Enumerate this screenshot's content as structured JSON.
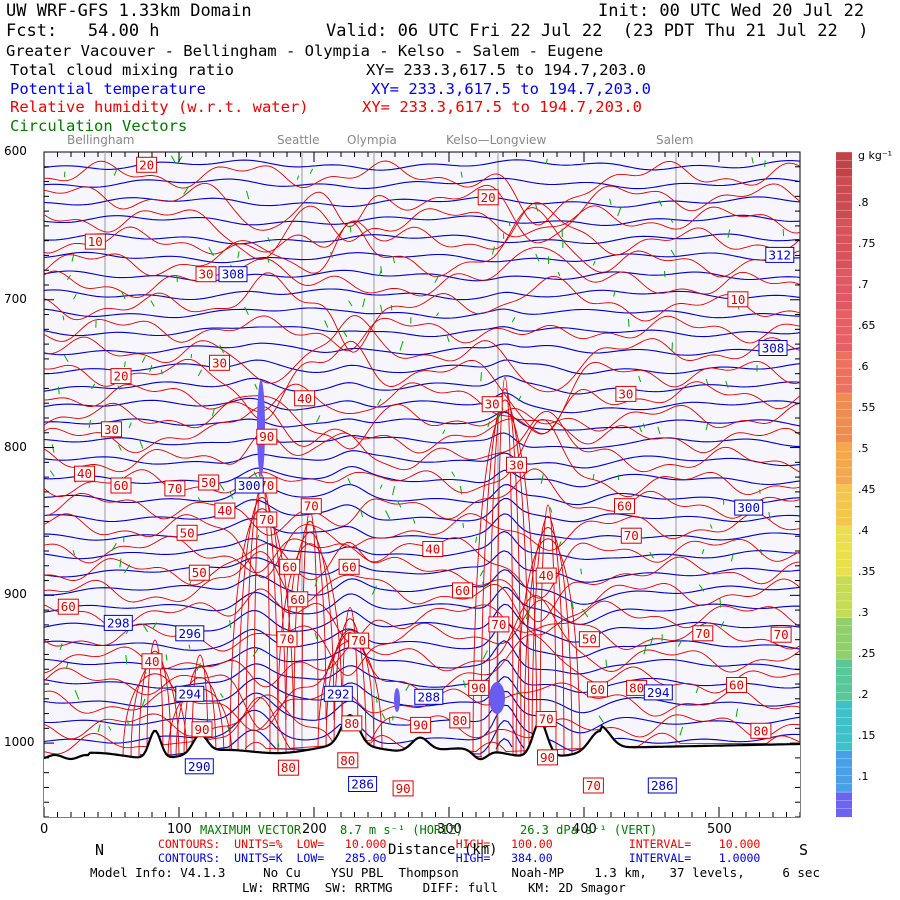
{
  "header": {
    "title": "UW WRF-GFS 1.33km Domain",
    "init": "Init: 00 UTC Wed 20 Jul 22",
    "fcst": "Fcst:   54.00 h",
    "valid": "Valid: 06 UTC Fri 22 Jul 22  (23 PDT Thu 21 Jul 22  )",
    "region": "Greater Vacouver - Bellingham - Olympia - Kelso - Salem - Eugene",
    "field_cloud": "Total cloud mixing ratio",
    "field_cloud_xy": "XY= 233.3,617.5 to 194.7,203.0",
    "field_theta": "Potential temperature",
    "field_theta_xy": "XY= 233.3,617.5 to 194.7,203.0",
    "field_rh": "Relative humidity (w.r.t. water)",
    "field_rh_xy": "XY= 233.3,617.5 to 194.7,203.0",
    "field_vec": "Circulation Vectors"
  },
  "cities": [
    "Bellingham",
    "Seattle",
    "Olympia",
    "Kelso—Longview",
    "Salem"
  ],
  "footer": {
    "n": "N",
    "s": "S",
    "max_vectors": "MAXIMUM VECTOR",
    "vec_horiz": "8.7 m s⁻¹ (HORIZ)",
    "vec_vert": "26.3 dPa s⁻¹ (VERT)",
    "distance": "Distance (km)",
    "rh_contours": "CONTOURS:  UNITS=%  LOW=   10.000          HIGH=   100.00           INTERVAL=    10.000",
    "theta_contours": "CONTOURS:  UNITS=K  LOW=   285.00          HIGH=   384.00           INTERVAL=    1.0000",
    "model_info": "Model Info: V4.1.3     No Cu    YSU PBL  Thompson       Noah-MP    1.3 km,   37 levels,     6 sec",
    "model_info2": "LW: RRTMG  SW: RRTMG    DIFF: full    KM: 2D Smagor"
  },
  "colors": {
    "theta": "#0000cc",
    "rh": "#dd0000",
    "vectors": "#00aa00",
    "terrain": "#000000",
    "cloud": "#6a5cf0"
  },
  "chart_data": {
    "type": "line",
    "title": "Total cloud mixing ratio / Potential temperature / Relative humidity (w.r.t. water) / Circulation Vectors",
    "xlabel": "Distance (km)",
    "ylabel": "",
    "xlim": [
      0,
      560
    ],
    "ylim": [
      1050,
      600
    ],
    "x_ticks": [
      0,
      100,
      200,
      300,
      400,
      500
    ],
    "y_ticks": [
      600,
      700,
      800,
      900,
      1000
    ],
    "y_tick_labels": [
      "600",
      "700",
      "800",
      "900",
      "1000"
    ],
    "colorbar": {
      "unit": "g kg⁻¹",
      "ticks": [
        ".1",
        ".15",
        ".2",
        ".25",
        ".3",
        ".35",
        ".4",
        ".45",
        ".5",
        ".55",
        ".6",
        ".65",
        ".7",
        ".75",
        ".8"
      ]
    },
    "theta_labels": [
      {
        "value": "308",
        "x": 140,
        "p": 683
      },
      {
        "value": "312",
        "x": 545,
        "p": 670
      },
      {
        "value": "308",
        "x": 540,
        "p": 733
      },
      {
        "value": "300",
        "x": 152,
        "p": 826
      },
      {
        "value": "300",
        "x": 522,
        "p": 841
      },
      {
        "value": "298",
        "x": 55,
        "p": 919
      },
      {
        "value": "296",
        "x": 108,
        "p": 926
      },
      {
        "value": "294",
        "x": 108,
        "p": 967
      },
      {
        "value": "294",
        "x": 455,
        "p": 966
      },
      {
        "value": "292",
        "x": 218,
        "p": 967
      },
      {
        "value": "288",
        "x": 285,
        "p": 969
      },
      {
        "value": "290",
        "x": 115,
        "p": 1016
      },
      {
        "value": "286",
        "x": 236,
        "p": 1028
      },
      {
        "value": "286",
        "x": 458,
        "p": 1029
      }
    ],
    "rh_labels": [
      {
        "value": "20",
        "x": 76,
        "p": 609
      },
      {
        "value": "20",
        "x": 329,
        "p": 631
      },
      {
        "value": "10",
        "x": 38,
        "p": 661
      },
      {
        "value": "30",
        "x": 120,
        "p": 683
      },
      {
        "value": "10",
        "x": 514,
        "p": 700
      },
      {
        "value": "30",
        "x": 130,
        "p": 743
      },
      {
        "value": "20",
        "x": 57,
        "p": 752
      },
      {
        "value": "30",
        "x": 431,
        "p": 764
      },
      {
        "value": "40",
        "x": 193,
        "p": 767
      },
      {
        "value": "30",
        "x": 332,
        "p": 771
      },
      {
        "value": "30",
        "x": 50,
        "p": 788
      },
      {
        "value": "90",
        "x": 165,
        "p": 793
      },
      {
        "value": "30",
        "x": 350,
        "p": 812
      },
      {
        "value": "40",
        "x": 30,
        "p": 818
      },
      {
        "value": "60",
        "x": 57,
        "p": 826
      },
      {
        "value": "70",
        "x": 97,
        "p": 828
      },
      {
        "value": "50",
        "x": 122,
        "p": 824
      },
      {
        "value": "70",
        "x": 165,
        "p": 826
      },
      {
        "value": "40",
        "x": 134,
        "p": 843
      },
      {
        "value": "70",
        "x": 198,
        "p": 840
      },
      {
        "value": "70",
        "x": 165,
        "p": 849
      },
      {
        "value": "60",
        "x": 430,
        "p": 840
      },
      {
        "value": "50",
        "x": 106,
        "p": 858
      },
      {
        "value": "70",
        "x": 435,
        "p": 860
      },
      {
        "value": "40",
        "x": 288,
        "p": 869
      },
      {
        "value": "60",
        "x": 182,
        "p": 881
      },
      {
        "value": "60",
        "x": 226,
        "p": 881
      },
      {
        "value": "50",
        "x": 115,
        "p": 885
      },
      {
        "value": "40",
        "x": 372,
        "p": 887
      },
      {
        "value": "60",
        "x": 310,
        "p": 897
      },
      {
        "value": "60",
        "x": 18,
        "p": 908
      },
      {
        "value": "60",
        "x": 188,
        "p": 903
      },
      {
        "value": "70",
        "x": 337,
        "p": 920
      },
      {
        "value": "70",
        "x": 488,
        "p": 926
      },
      {
        "value": "70",
        "x": 546,
        "p": 927
      },
      {
        "value": "50",
        "x": 404,
        "p": 930
      },
      {
        "value": "70",
        "x": 180,
        "p": 930
      },
      {
        "value": "70",
        "x": 233,
        "p": 931
      },
      {
        "value": "40",
        "x": 80,
        "p": 945
      },
      {
        "value": "90",
        "x": 322,
        "p": 963
      },
      {
        "value": "80",
        "x": 439,
        "p": 963
      },
      {
        "value": "60",
        "x": 410,
        "p": 964
      },
      {
        "value": "60",
        "x": 513,
        "p": 961
      },
      {
        "value": "80",
        "x": 228,
        "p": 987
      },
      {
        "value": "90",
        "x": 279,
        "p": 988
      },
      {
        "value": "80",
        "x": 308,
        "p": 985
      },
      {
        "value": "70",
        "x": 372,
        "p": 984
      },
      {
        "value": "90",
        "x": 117,
        "p": 991
      },
      {
        "value": "80",
        "x": 531,
        "p": 992
      },
      {
        "value": "80",
        "x": 225,
        "p": 1012
      },
      {
        "value": "80",
        "x": 181,
        "p": 1017
      },
      {
        "value": "90",
        "x": 373,
        "p": 1010
      },
      {
        "value": "90",
        "x": 266,
        "p": 1031
      },
      {
        "value": "70",
        "x": 407,
        "p": 1029
      }
    ]
  }
}
